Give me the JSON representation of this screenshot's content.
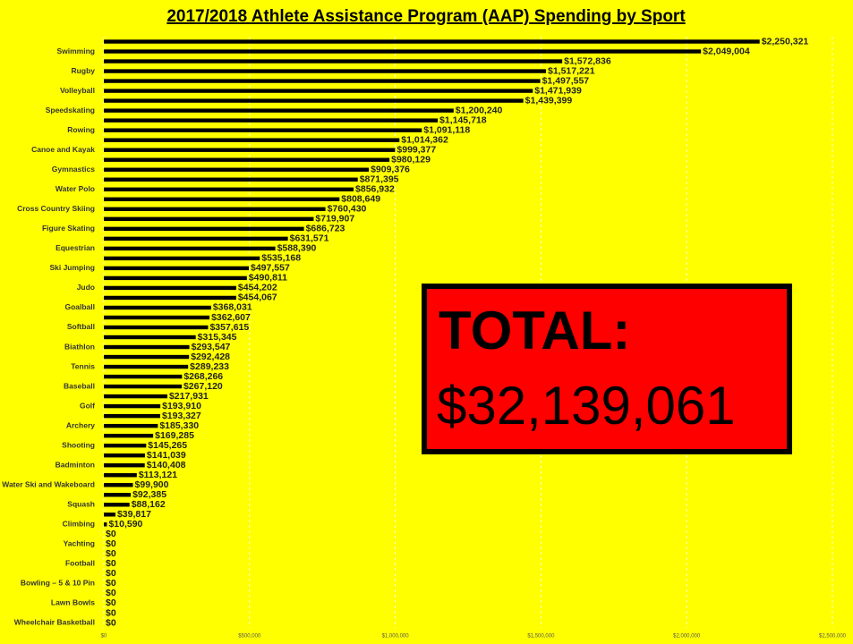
{
  "chart_data": {
    "type": "barh",
    "title": "2017/2018 Athlete Assistance Program (AAP) Spending by Sport",
    "categories": [
      null,
      "Swimming",
      null,
      "Rugby",
      null,
      "Volleyball",
      null,
      "Speedskating",
      null,
      "Rowing",
      null,
      "Canoe and Kayak",
      null,
      "Gymnastics",
      null,
      "Water Polo",
      null,
      "Cross Country Skiing",
      null,
      "Figure Skating",
      null,
      "Equestrian",
      null,
      "Ski Jumping",
      null,
      "Judo",
      null,
      "Goalball",
      null,
      "Softball",
      null,
      "Biathlon",
      null,
      "Tennis",
      null,
      "Baseball",
      null,
      "Golf",
      null,
      "Archery",
      null,
      "Shooting",
      null,
      "Badminton",
      null,
      "Water Ski and Wakeboard",
      null,
      "Squash",
      null,
      "Climbing",
      null,
      "Yachting",
      null,
      "Football",
      null,
      "Bowling – 5 & 10 Pin",
      null,
      "Lawn Bowls",
      null,
      "Wheelchair Basketball"
    ],
    "values": [
      2250321,
      2049004,
      1572836,
      1517221,
      1497557,
      1471939,
      1439399,
      1200240,
      1145718,
      1091118,
      1014362,
      999377,
      980129,
      909376,
      871395,
      856932,
      808649,
      760430,
      719907,
      686723,
      631571,
      588390,
      535168,
      497557,
      490811,
      454202,
      454067,
      368031,
      362607,
      357615,
      315345,
      293547,
      292428,
      289233,
      268266,
      267120,
      217931,
      193910,
      193327,
      185330,
      169285,
      145265,
      141039,
      140408,
      113121,
      99900,
      92385,
      88162,
      39817,
      10590,
      0,
      0,
      0,
      0,
      0,
      0,
      0,
      0,
      0,
      0
    ],
    "value_labels": [
      "$2,250,321",
      "$2,049,004",
      "$1,572,836",
      "$1,517,221",
      "$1,497,557",
      "$1,471,939",
      "$1,439,399",
      "$1,200,240",
      "$1,145,718",
      "$1,091,118",
      "$1,014,362",
      "$999,377",
      "$980,129",
      "$909,376",
      "$871,395",
      "$856,932",
      "$808,649",
      "$760,430",
      "$719,907",
      "$686,723",
      "$631,571",
      "$588,390",
      "$535,168",
      "$497,557",
      "$490,811",
      "$454,202",
      "$454,067",
      "$368,031",
      "$362,607",
      "$357,615",
      "$315,345",
      "$293,547",
      "$292,428",
      "$289,233",
      "$268,266",
      "$267,120",
      "$217,931",
      "$193,910",
      "$193,327",
      "$185,330",
      "$169,285",
      "$145,265",
      "$141,039",
      "$140,408",
      "$113,121",
      "$99,900",
      "$92,385",
      "$88,162",
      "$39,817",
      "$10,590",
      "$0",
      "$0",
      "$0",
      "$0",
      "$0",
      "$0",
      "$0",
      "$0",
      "$0",
      "$0"
    ],
    "color": "#000000",
    "background": "#ffff00",
    "xlim": [
      0,
      2500000
    ],
    "xticks": [
      {
        "value": 0,
        "label": "$0"
      },
      {
        "value": 500000,
        "label": "$500,000"
      },
      {
        "value": 1000000,
        "label": "$1,000,000"
      },
      {
        "value": 1500000,
        "label": "$1,500,000"
      },
      {
        "value": 2000000,
        "label": "$2,000,000"
      },
      {
        "value": 2500000,
        "label": "$2,500,000"
      }
    ],
    "grid": true,
    "total_box": {
      "heading": "TOTAL:",
      "amount": "$32,139,061",
      "color": "#ff0000"
    }
  }
}
